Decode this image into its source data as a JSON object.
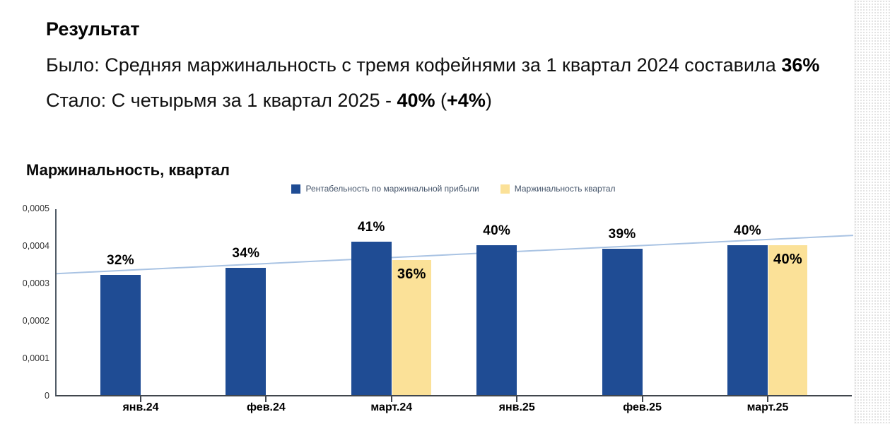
{
  "summary": {
    "heading": "Результат",
    "before": {
      "text": "Было: Средняя маржинальность с тремя кофейнями за 1 квартал 2024 составила ",
      "value": "36%"
    },
    "after": {
      "text": "Стало: С четырьмя за 1 квартал 2025 - ",
      "value": "40%",
      "delta_open": " (",
      "delta": "+4%",
      "delta_close": ")"
    }
  },
  "chart_data": {
    "type": "bar",
    "title": "Маржинальность, квартал",
    "categories": [
      "янв.24",
      "фев.24",
      "март.24",
      "янв.25",
      "фев.25",
      "март.25"
    ],
    "series": [
      {
        "name": "Рентабельность по маржинальной прибыли",
        "color": "#1f4c94",
        "percent": [
          32,
          34,
          41,
          40,
          39,
          40
        ],
        "values": [
          0.00032,
          0.00034,
          0.00041,
          0.0004,
          0.00039,
          0.0004
        ],
        "labels": [
          "32%",
          "34%",
          "41%",
          "40%",
          "39%",
          "40%"
        ]
      },
      {
        "name": "Маржинальность квартал",
        "color": "#fbe198",
        "percent": [
          null,
          null,
          36,
          null,
          null,
          40
        ],
        "values": [
          null,
          null,
          0.00036,
          null,
          null,
          0.0004
        ],
        "labels": [
          null,
          null,
          "36%",
          null,
          null,
          "40%"
        ]
      }
    ],
    "trendline": {
      "color": "#a9c3e3",
      "start_value": 0.000328,
      "end_value": 0.00043
    },
    "y_axis": {
      "min": 0,
      "max": 0.0005,
      "ticks": [
        "0,0005",
        "0,0004",
        "0,0003",
        "0,0002",
        "0,0001",
        "0"
      ]
    },
    "legend_position": "top-center",
    "gridlines": false,
    "colors": {
      "bar_blue": "#1f4c94",
      "bar_yellow": "#fbe198",
      "trend": "#a9c3e3",
      "axis": "#4b555f"
    }
  }
}
